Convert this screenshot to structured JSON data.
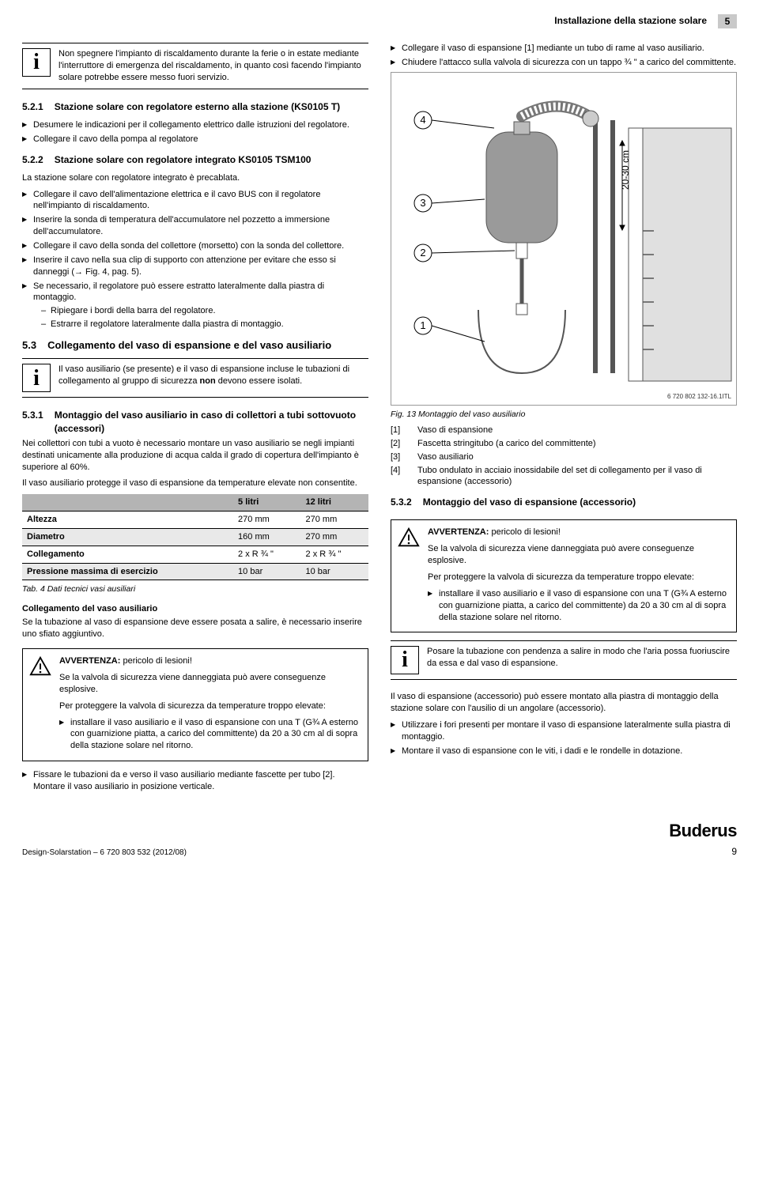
{
  "header": {
    "title": "Installazione della stazione solare",
    "chapter": "5"
  },
  "left": {
    "info1": "Non spegnere l'impianto di riscaldamento durante la ferie o in estate mediante l'interruttore di emergenza del riscaldamento, in quanto così facendo l'impianto solare potrebbe essere messo fuori servizio.",
    "s521": {
      "num": "5.2.1",
      "title": "Stazione solare con regolatore esterno alla stazione (KS0105 T)",
      "items": [
        "Desumere le indicazioni per il collegamento elettrico dalle istruzioni del regolatore.",
        "Collegare il cavo della pompa al regolatore"
      ]
    },
    "s522": {
      "num": "5.2.2",
      "title": "Stazione solare con regolatore integrato KS0105 TSM100",
      "intro": "La stazione solare con regolatore integrato è precablata.",
      "items": [
        "Collegare il cavo dell'alimentazione elettrica e il cavo BUS con il regolatore nell'impianto di riscaldamento.",
        "Inserire la sonda di temperatura dell'accumulatore nel pozzetto a immersione dell'accumulatore.",
        "Collegare il cavo della sonda del collettore (morsetto) con la sonda del collettore.",
        "Inserire il cavo nella sua clip di supporto con attenzione per evitare che esso si danneggi (→ Fig. 4, pag. 5).",
        "Se necessario, il regolatore può essere estratto lateralmente dalla piastra di montaggio."
      ],
      "subitems": [
        "Ripiegare i bordi della barra del regolatore.",
        "Estrarre il regolatore lateralmente dalla piastra di montaggio."
      ]
    },
    "s53": {
      "num": "5.3",
      "title": "Collegamento del vaso di espansione e del vaso ausiliario"
    },
    "info2_pre": "Il vaso ausiliario (se presente) e il vaso di espansione incluse le tubazioni di collegamento al gruppo di sicurezza ",
    "info2_bold": "non",
    "info2_post": " devono essere isolati.",
    "s531": {
      "num": "5.3.1",
      "title": "Montaggio del vaso ausiliario in caso di collettori a tubi sottovuoto (accessori)",
      "p1": "Nei collettori con tubi a vuoto è necessario montare un vaso ausiliario se negli impianti destinati unicamente alla produzione di acqua calda il grado di copertura dell'impianto è superiore al 60%.",
      "p2": "Il vaso ausiliario protegge il vaso di espansione da temperature elevate non consentite."
    },
    "table": {
      "headers": [
        "",
        "5 litri",
        "12 litri"
      ],
      "rows": [
        [
          "Altezza",
          "270 mm",
          "270 mm"
        ],
        [
          "Diametro",
          "160 mm",
          "270 mm"
        ],
        [
          "Collegamento",
          "2 x R ¾ \"",
          "2 x R ¾ \""
        ],
        [
          "Pressione massima di esercizio",
          "10 bar",
          "10 bar"
        ]
      ],
      "caption": "Tab. 4   Dati tecnici vasi ausiliari"
    },
    "connh": "Collegamento del vaso ausiliario",
    "connp": "Se la tubazione al vaso di espansione deve essere posata a salire, è necessario inserire uno sfiato aggiuntivo.",
    "warn1": {
      "title": "AVVERTENZA: ",
      "titleText": "pericolo di lesioni!",
      "p1": "Se la valvola di sicurezza viene danneggiata può avere conseguenze esplosive.",
      "p2": "Per proteggere la valvola di sicurezza da temperature troppo elevate:",
      "item": "installare il vaso ausiliario e il vaso di espansione con una T (G¾  A esterno con guarnizione piatta, a carico del committente) da 20 a 30 cm al di sopra della stazione solare nel ritorno."
    },
    "after": [
      "Fissare le tubazioni da e verso il vaso ausiliario mediante fascette per tubo [2]. Montare il vaso ausiliario in posizione verticale."
    ]
  },
  "right": {
    "topitems": [
      "Collegare il vaso di espansione [1] mediante un tubo di rame al vaso ausiliario.",
      "Chiudere l'attacco sulla valvola di sicurezza con un tappo ¾ \" a carico del committente."
    ],
    "fig": {
      "labels": [
        "1",
        "2",
        "3",
        "4"
      ],
      "dim": "20-30 cm",
      "code": "6 720 802 132-16.1ITL",
      "caption": "Fig. 13  Montaggio del vaso ausiliario"
    },
    "legend": [
      [
        "[1]",
        "Vaso di espansione"
      ],
      [
        "[2]",
        "Fascetta stringitubo (a carico del committente)"
      ],
      [
        "[3]",
        "Vaso ausiliario"
      ],
      [
        "[4]",
        "Tubo ondulato in acciaio inossidabile del set di collegamento per il vaso di espansione (accessorio)"
      ]
    ],
    "s532": {
      "num": "5.3.2",
      "title": "Montaggio del vaso di espansione (accessorio)"
    },
    "warn2": {
      "title": "AVVERTENZA: ",
      "titleText": "pericolo di lesioni!",
      "p1": "Se la valvola di sicurezza viene danneggiata può avere conseguenze esplosive.",
      "p2": "Per proteggere la valvola di sicurezza da temperature troppo elevate:",
      "item": "installare il vaso ausiliario e il vaso di espansione con una T (G¾  A esterno con guarnizione piatta, a carico del committente) da 20 a 30 cm al di sopra della stazione solare nel ritorno."
    },
    "info3": "Posare la tubazione con pendenza a salire in modo che l'aria possa fuoriuscire da essa e dal vaso di espansione.",
    "p_after": "Il vaso di espansione (accessorio) può essere montato alla piastra di montaggio della stazione solare con l'ausilio di un angolare (accessorio).",
    "final": [
      "Utilizzare i fori presenti per montare il vaso di espansione lateralmente sulla piastra di montaggio.",
      "Montare il vaso di espansione con le viti, i dadi e le rondelle in dotazione."
    ]
  },
  "footer": {
    "doc": "Design-Solarstation – 6 720 803 532 (2012/08)",
    "brand": "Buderus",
    "page": "9"
  }
}
